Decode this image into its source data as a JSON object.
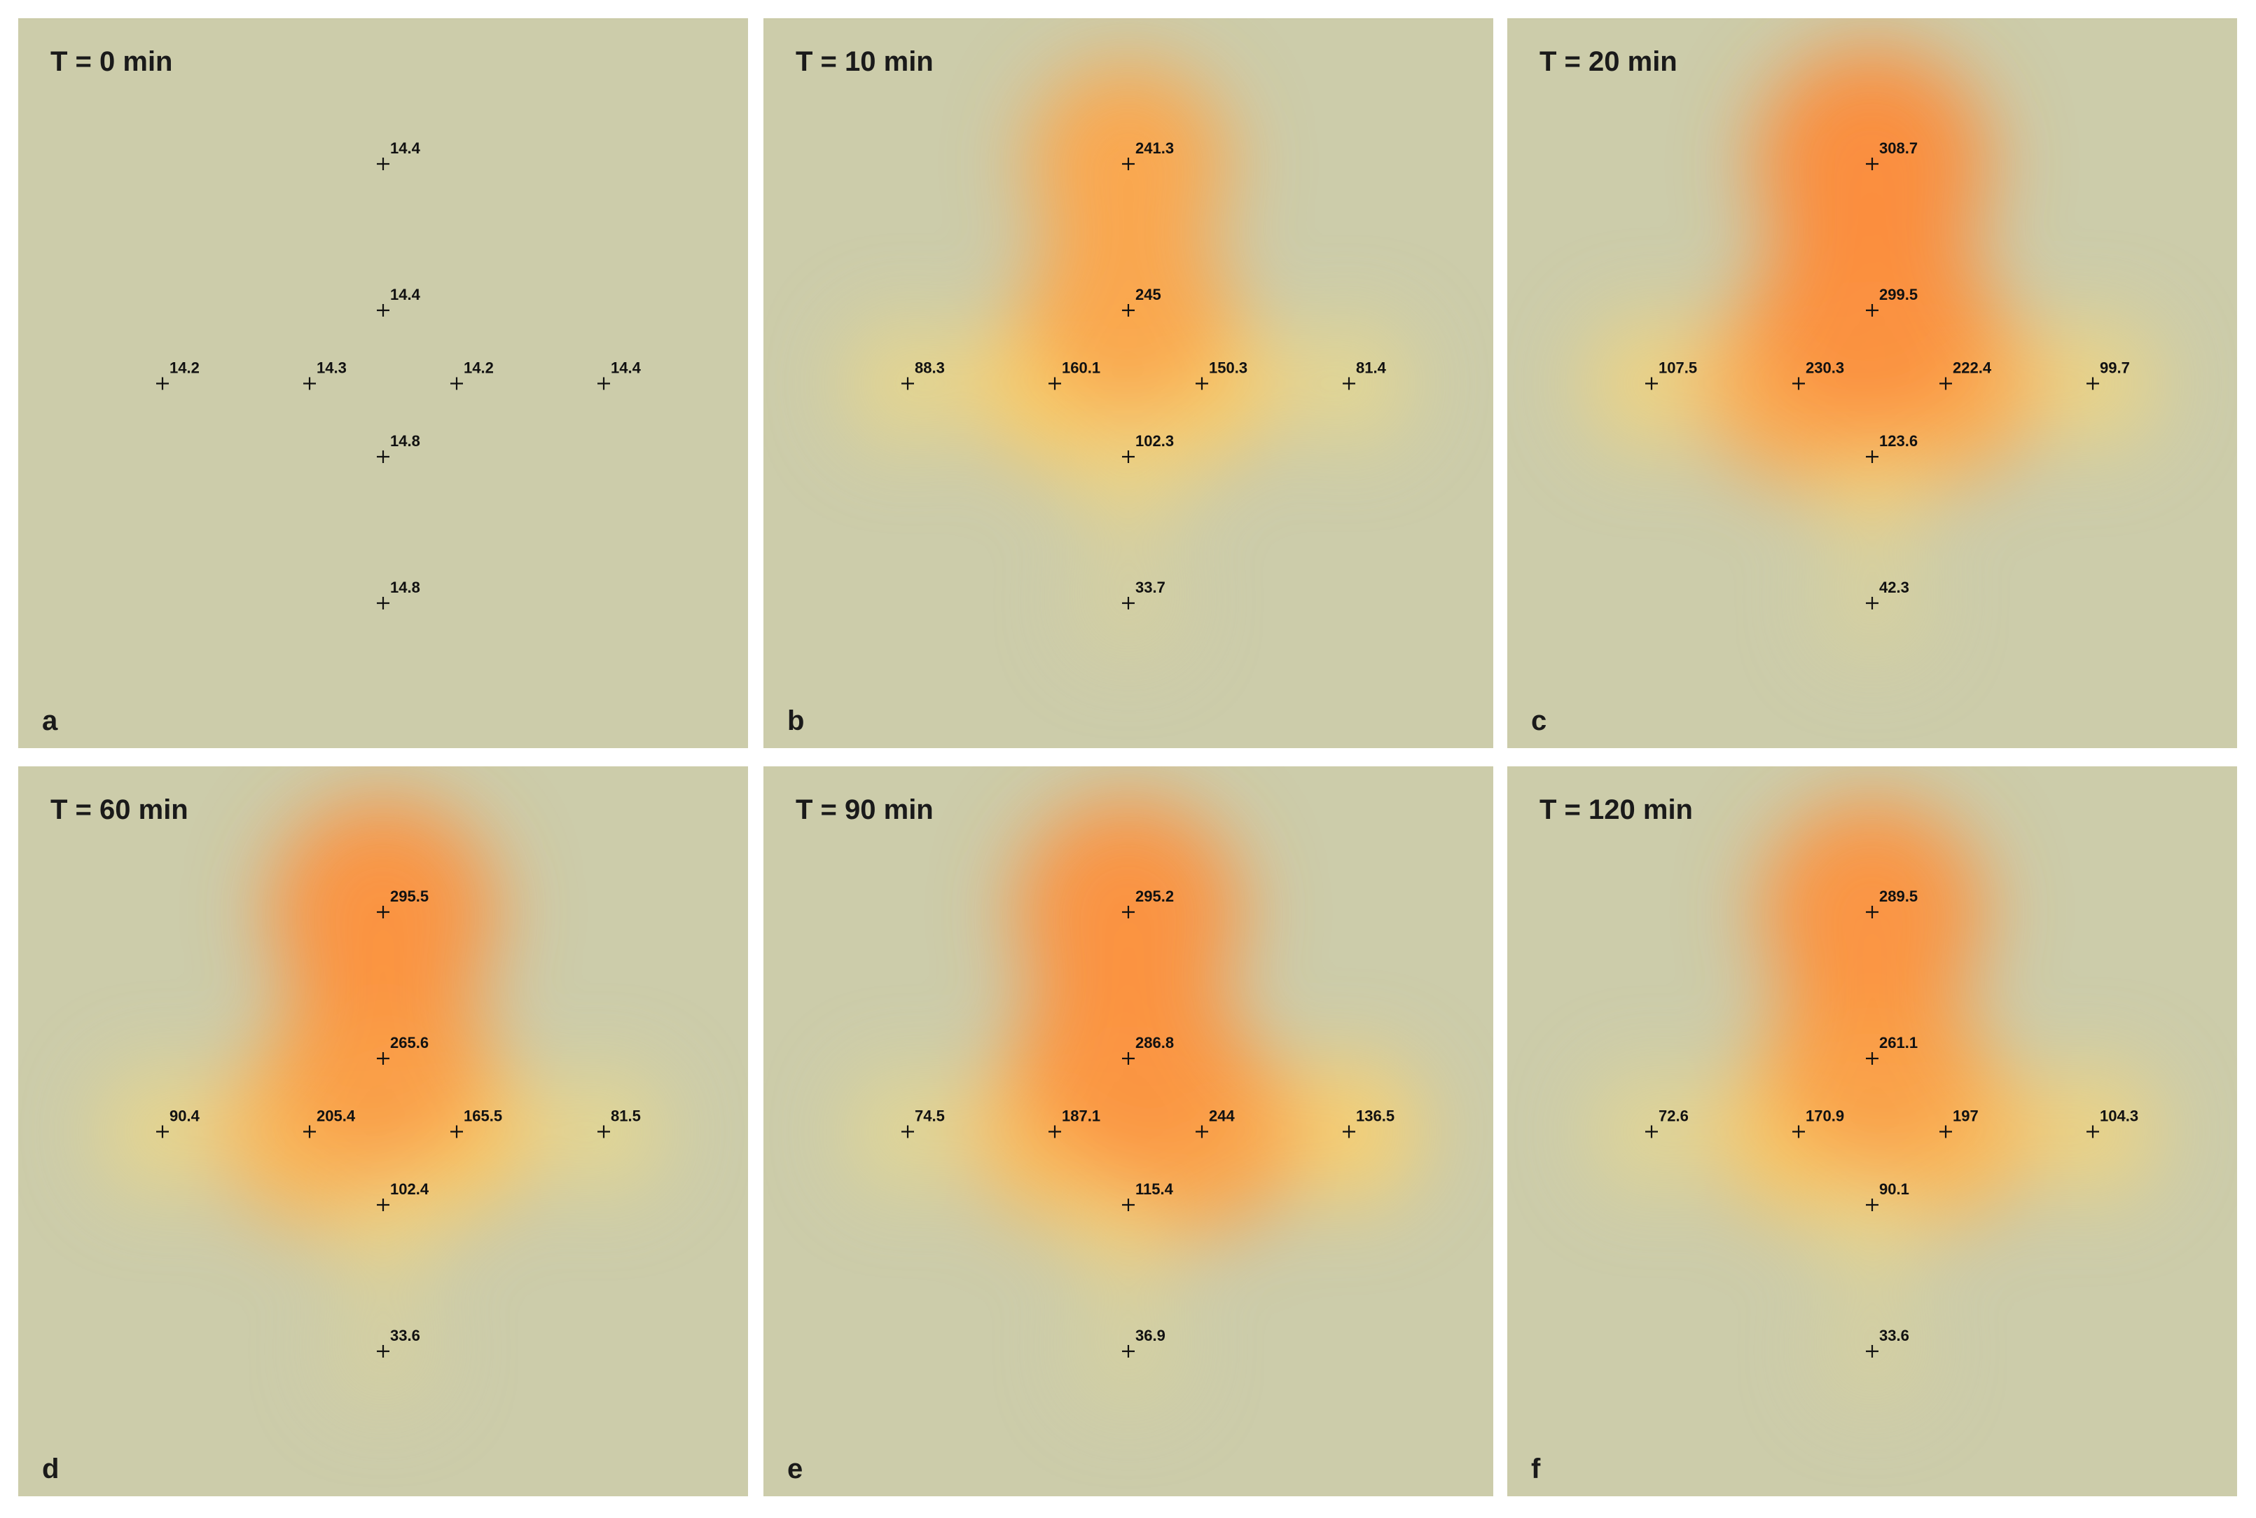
{
  "chart_data": [
    {
      "type": "heatmap",
      "title": "T = 0 min",
      "panel_label": "a",
      "points": [
        {
          "x": 0,
          "y": 6,
          "value": "14.4"
        },
        {
          "x": 0,
          "y": 4,
          "value": "14.4"
        },
        {
          "x": -3,
          "y": 3,
          "value": "14.2"
        },
        {
          "x": -1,
          "y": 3,
          "value": "14.3"
        },
        {
          "x": 1,
          "y": 3,
          "value": "14.2"
        },
        {
          "x": 3,
          "y": 3,
          "value": "14.4"
        },
        {
          "x": 0,
          "y": 2,
          "value": "14.8"
        },
        {
          "x": 0,
          "y": 0,
          "value": "14.8"
        }
      ]
    },
    {
      "type": "heatmap",
      "title": "T = 10 min",
      "panel_label": "b",
      "points": [
        {
          "x": 0,
          "y": 6,
          "value": "241.3"
        },
        {
          "x": 0,
          "y": 4,
          "value": "245"
        },
        {
          "x": -3,
          "y": 3,
          "value": "88.3"
        },
        {
          "x": -1,
          "y": 3,
          "value": "160.1"
        },
        {
          "x": 1,
          "y": 3,
          "value": "150.3"
        },
        {
          "x": 3,
          "y": 3,
          "value": "81.4"
        },
        {
          "x": 0,
          "y": 2,
          "value": "102.3"
        },
        {
          "x": 0,
          "y": 0,
          "value": "33.7"
        }
      ]
    },
    {
      "type": "heatmap",
      "title": "T = 20 min",
      "panel_label": "c",
      "points": [
        {
          "x": 0,
          "y": 6,
          "value": "308.7"
        },
        {
          "x": 0,
          "y": 4,
          "value": "299.5"
        },
        {
          "x": -3,
          "y": 3,
          "value": "107.5"
        },
        {
          "x": -1,
          "y": 3,
          "value": "230.3"
        },
        {
          "x": 1,
          "y": 3,
          "value": "222.4"
        },
        {
          "x": 3,
          "y": 3,
          "value": "99.7"
        },
        {
          "x": 0,
          "y": 2,
          "value": "123.6"
        },
        {
          "x": 0,
          "y": 0,
          "value": "42.3"
        }
      ]
    },
    {
      "type": "heatmap",
      "title": "T = 60 min",
      "panel_label": "d",
      "points": [
        {
          "x": 0,
          "y": 6,
          "value": "295.5"
        },
        {
          "x": 0,
          "y": 4,
          "value": "265.6"
        },
        {
          "x": -3,
          "y": 3,
          "value": "90.4"
        },
        {
          "x": -1,
          "y": 3,
          "value": "205.4"
        },
        {
          "x": 1,
          "y": 3,
          "value": "165.5"
        },
        {
          "x": 3,
          "y": 3,
          "value": "81.5"
        },
        {
          "x": 0,
          "y": 2,
          "value": "102.4"
        },
        {
          "x": 0,
          "y": 0,
          "value": "33.6"
        }
      ]
    },
    {
      "type": "heatmap",
      "title": "T = 90 min",
      "panel_label": "e",
      "points": [
        {
          "x": 0,
          "y": 6,
          "value": "295.2"
        },
        {
          "x": 0,
          "y": 4,
          "value": "286.8"
        },
        {
          "x": -3,
          "y": 3,
          "value": "74.5"
        },
        {
          "x": -1,
          "y": 3,
          "value": "187.1"
        },
        {
          "x": 1,
          "y": 3,
          "value": "244"
        },
        {
          "x": 3,
          "y": 3,
          "value": "136.5"
        },
        {
          "x": 0,
          "y": 2,
          "value": "115.4"
        },
        {
          "x": 0,
          "y": 0,
          "value": "36.9"
        }
      ]
    },
    {
      "type": "heatmap",
      "title": "T = 120 min",
      "panel_label": "f",
      "points": [
        {
          "x": 0,
          "y": 6,
          "value": "289.5"
        },
        {
          "x": 0,
          "y": 4,
          "value": "261.1"
        },
        {
          "x": -3,
          "y": 3,
          "value": "72.6"
        },
        {
          "x": -1,
          "y": 3,
          "value": "170.9"
        },
        {
          "x": 1,
          "y": 3,
          "value": "197"
        },
        {
          "x": 3,
          "y": 3,
          "value": "104.3"
        },
        {
          "x": 0,
          "y": 2,
          "value": "90.1"
        },
        {
          "x": 0,
          "y": 0,
          "value": "33.6"
        }
      ]
    }
  ]
}
